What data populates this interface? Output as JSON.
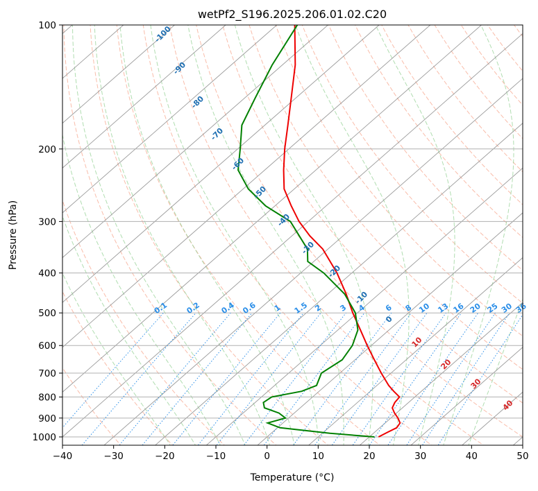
{
  "chart_data": {
    "type": "line",
    "title": "wetPf2_S196.2025.206.01.02.C20",
    "xlabel": "Temperature (°C)",
    "ylabel": "Pressure (hPa)",
    "xlim": [
      -40,
      50
    ],
    "ylim": [
      1050,
      100
    ],
    "yscale": "log",
    "x_ticks": [
      "−40",
      "−30",
      "−20",
      "−10",
      "0",
      "10",
      "20",
      "30",
      "40",
      "50"
    ],
    "y_ticks": [
      "100",
      "200",
      "300",
      "400",
      "500",
      "600",
      "700",
      "800",
      "900",
      "1000"
    ],
    "grid": true,
    "colors": {
      "temperature": "#ee0000",
      "dewpoint": "#008000",
      "isotherm": "#9a9a9a",
      "dry_adiabat": "#f7a58c",
      "moist_adiabat": "#8fcf8f",
      "mixing_ratio": "#2a8ee8",
      "dry_label": "#1f6fb2",
      "moist_label": "#d62728"
    },
    "series": [
      {
        "role": "temperature",
        "points": [
          {
            "p": 1000,
            "t": 21.8
          },
          {
            "p": 975,
            "t": 22.5
          },
          {
            "p": 950,
            "t": 23.3
          },
          {
            "p": 925,
            "t": 22.9
          },
          {
            "p": 900,
            "t": 21.4
          },
          {
            "p": 875,
            "t": 19.6
          },
          {
            "p": 850,
            "t": 18.0
          },
          {
            "p": 825,
            "t": 17.3
          },
          {
            "p": 800,
            "t": 17.0
          },
          {
            "p": 775,
            "t": 14.6
          },
          {
            "p": 750,
            "t": 12.3
          },
          {
            "p": 700,
            "t": 8.1
          },
          {
            "p": 650,
            "t": 3.8
          },
          {
            "p": 600,
            "t": -0.8
          },
          {
            "p": 550,
            "t": -5.6
          },
          {
            "p": 500,
            "t": -10.9
          },
          {
            "p": 450,
            "t": -16.4
          },
          {
            "p": 400,
            "t": -22.9
          },
          {
            "p": 350,
            "t": -31.0
          },
          {
            "p": 325,
            "t": -36.5
          },
          {
            "p": 300,
            "t": -41.8
          },
          {
            "p": 275,
            "t": -46.8
          },
          {
            "p": 250,
            "t": -52.0
          },
          {
            "p": 225,
            "t": -56.3
          },
          {
            "p": 200,
            "t": -60.8
          },
          {
            "p": 175,
            "t": -65.5
          },
          {
            "p": 150,
            "t": -71.0
          },
          {
            "p": 125,
            "t": -77.5
          },
          {
            "p": 100,
            "t": -86.5
          }
        ]
      },
      {
        "role": "dewpoint",
        "points": [
          {
            "p": 1000,
            "t": 21.0
          },
          {
            "p": 980,
            "t": 11.5
          },
          {
            "p": 950,
            "t": 0.5
          },
          {
            "p": 925,
            "t": -3.0
          },
          {
            "p": 900,
            "t": -0.6
          },
          {
            "p": 875,
            "t": -3.0
          },
          {
            "p": 850,
            "t": -7.0
          },
          {
            "p": 825,
            "t": -8.4
          },
          {
            "p": 800,
            "t": -8.0
          },
          {
            "p": 775,
            "t": -3.4
          },
          {
            "p": 750,
            "t": -1.8
          },
          {
            "p": 700,
            "t": -3.6
          },
          {
            "p": 650,
            "t": -2.5
          },
          {
            "p": 600,
            "t": -3.7
          },
          {
            "p": 550,
            "t": -6.1
          },
          {
            "p": 500,
            "t": -10.4
          },
          {
            "p": 450,
            "t": -16.7
          },
          {
            "p": 400,
            "t": -25.5
          },
          {
            "p": 375,
            "t": -31.2
          },
          {
            "p": 350,
            "t": -34.0
          },
          {
            "p": 300,
            "t": -43.5
          },
          {
            "p": 275,
            "t": -51.8
          },
          {
            "p": 250,
            "t": -59.0
          },
          {
            "p": 225,
            "t": -65.2
          },
          {
            "p": 200,
            "t": -69.5
          },
          {
            "p": 175,
            "t": -74.5
          },
          {
            "p": 150,
            "t": -78.0
          },
          {
            "p": 125,
            "t": -82.0
          },
          {
            "p": 100,
            "t": -86.0
          }
        ]
      }
    ],
    "dry_adiabat_labels": [
      "-100",
      "-90",
      "-80",
      "-70",
      "-60",
      "-50",
      "-40",
      "-30",
      "-20",
      "-10",
      "0",
      "10",
      "20",
      "30",
      "40"
    ],
    "mixing_ratio_labels": [
      "0.1",
      "0.2",
      "0.4",
      "0.6",
      "1",
      "1.5",
      "2",
      "3",
      "4",
      "6",
      "8",
      "10",
      "13",
      "16",
      "20",
      "25",
      "30",
      "36"
    ]
  }
}
